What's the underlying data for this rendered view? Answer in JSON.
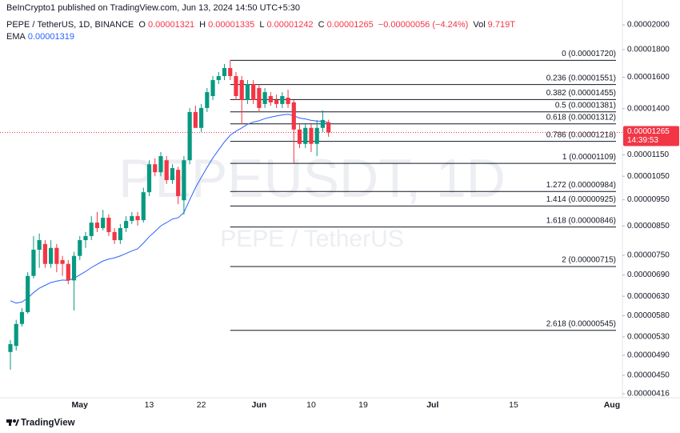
{
  "header": {
    "published": "BeInCrypto1 published on TradingView.com, Jun 13, 2024 14:50 UTC+5:30"
  },
  "legend": {
    "symbol": "PEPE / TetherUS, 1D, BINANCE",
    "o": "O",
    "h": "H",
    "l": "L",
    "c": "C",
    "change": "−0.00000056 (−4.24%)",
    "vol_label": "Vol",
    "vol": "9.719T"
  },
  "watermark": {
    "ticker": "PEPEUSDT, 1D",
    "name": "PEPE / TetherUS"
  },
  "footer": {
    "brand": "TradingView"
  },
  "chart_data": {
    "type": "candlestick",
    "log_scale": true,
    "grid": false,
    "categories": [
      null,
      null,
      null,
      null,
      null,
      null,
      null,
      null,
      null,
      null,
      null,
      null,
      "May",
      null,
      null,
      null,
      null,
      null,
      null,
      null,
      null,
      null,
      null,
      null,
      "13",
      null,
      null,
      null,
      null,
      null,
      null,
      null,
      null,
      "22",
      null,
      null,
      null,
      null,
      null,
      null,
      null,
      null,
      null,
      "Jun",
      null,
      null,
      null,
      null,
      null,
      null,
      null,
      null,
      "10",
      null,
      null,
      null,
      null,
      null,
      null,
      null,
      null,
      "19",
      null,
      null,
      null,
      null,
      null,
      null,
      null,
      null,
      null,
      null,
      null,
      "Jul",
      null,
      null,
      null,
      null,
      null,
      null,
      null,
      null,
      null,
      null,
      null,
      null,
      null,
      "15",
      null,
      null,
      null,
      null,
      null,
      null,
      null,
      null,
      null,
      null,
      null,
      null,
      null,
      null,
      null,
      null,
      "Aug",
      null
    ],
    "candles": {
      "up_color": "#089981",
      "down_color": "#f23645",
      "open": [
        4.97e-06,
        5.1e-06,
        5.6e-06,
        5.89e-06,
        6.87e-06,
        7.68e-06,
        7.87e-06,
        7.23e-06,
        7.74e-06,
        7.35e-06,
        7.23e-06,
        6.74e-06,
        7.48e-06,
        8e-06,
        8.14e-06,
        8.62e-06,
        8.42e-06,
        8.8e-06,
        8.28e-06,
        8e-06,
        8.42e-06,
        8.68e-06,
        8.86e-06,
        8.71e-06,
        9.81e-06,
        1.105e-05,
        1.068e-05,
        1.124e-05,
        1.033e-05,
        1.079e-05,
        9.48e-06,
        1.124e-05,
        1.38e-05,
        1.29e-05,
        1.404e-05,
        1.477e-05,
        1.581e-05,
        1.608e-05,
        1.664e-05,
        1.608e-05,
        1.581e-05,
        1.452e-05,
        1.554e-05,
        1.528e-05,
        1.428e-05,
        1.477e-05,
        1.452e-05,
        1.428e-05,
        1.467e-05,
        1.438e-05,
        1.281e-05,
        1.205e-05,
        1.29e-05,
        1.205e-05,
        1.29e-05,
        1.321e-05,
        null,
        null,
        null,
        null,
        null,
        null,
        null,
        null,
        null,
        null,
        null,
        null,
        null,
        null,
        null,
        null,
        null,
        null,
        null,
        null,
        null,
        null,
        null,
        null,
        null,
        null,
        null,
        null,
        null,
        null,
        null,
        null,
        null,
        null,
        null,
        null,
        null,
        null,
        null,
        null,
        null,
        null,
        null,
        null,
        null,
        null,
        null,
        null,
        null,
        null
      ],
      "high": [
        5.23e-06,
        5.7e-06,
        5.99e-06,
        6.98e-06,
        8.14e-06,
        8.23e-06,
        8e-06,
        8e-06,
        7.87e-06,
        7.48e-06,
        7.35e-06,
        7.61e-06,
        8.14e-06,
        8.28e-06,
        8.86e-06,
        9.02e-06,
        9.1e-06,
        8.93e-06,
        8.42e-06,
        8.57e-06,
        8.86e-06,
        9.02e-06,
        9.02e-06,
        1e-05,
        1.124e-05,
        1.133e-05,
        1.164e-05,
        1.144e-05,
        1.105e-05,
        1.093e-05,
        1.144e-05,
        1.404e-05,
        1.418e-05,
        1.428e-05,
        1.528e-05,
        1.608e-05,
        1.636e-05,
        1.693e-05,
        1.72e-05,
        1.636e-05,
        1.608e-05,
        1.581e-05,
        1.581e-05,
        1.554e-05,
        1.528e-05,
        1.502e-05,
        1.487e-05,
        1.502e-05,
        1.518e-05,
        1.452e-05,
        1.311e-05,
        1.311e-05,
        1.311e-05,
        1.334e-05,
        1.39e-05,
        1.335e-05,
        null,
        null,
        null,
        null,
        null,
        null,
        null,
        null,
        null,
        null,
        null,
        null,
        null,
        null,
        null,
        null,
        null,
        null,
        null,
        null,
        null,
        null,
        null,
        null,
        null,
        null,
        null,
        null,
        null,
        null,
        null,
        null,
        null,
        null,
        null,
        null,
        null,
        null,
        null,
        null,
        null,
        null,
        null,
        null,
        null,
        null,
        null,
        null,
        null,
        null
      ],
      "low": [
        4.61e-06,
        5e-06,
        5.54e-06,
        5.85e-06,
        6.8e-06,
        7.11e-06,
        7.11e-06,
        7.11e-06,
        6.98e-06,
        6.87e-06,
        6.63e-06,
        5.93e-06,
        7.35e-06,
        7.74e-06,
        8e-06,
        8.28e-06,
        8.34e-06,
        8.14e-06,
        7.87e-06,
        7.87e-06,
        8.28e-06,
        8.57e-06,
        8.51e-06,
        8.62e-06,
        9.65e-06,
        1.05e-05,
        1.05e-05,
        1.016e-05,
        1.016e-05,
        9.32e-06,
        8.92e-06,
        1.105e-05,
        1.29e-05,
        1.268e-05,
        1.38e-05,
        1.452e-05,
        1.554e-05,
        1.581e-05,
        1.581e-05,
        1.452e-05,
        1.311e-05,
        1.428e-05,
        1.428e-05,
        1.38e-05,
        1.404e-05,
        1.418e-05,
        1.404e-05,
        1.404e-05,
        1.404e-05,
        1.109e-05,
        1.184e-05,
        1.184e-05,
        1.164e-05,
        1.144e-05,
        1.268e-05,
        1.242e-05,
        null,
        null,
        null,
        null,
        null,
        null,
        null,
        null,
        null,
        null,
        null,
        null,
        null,
        null,
        null,
        null,
        null,
        null,
        null,
        null,
        null,
        null,
        null,
        null,
        null,
        null,
        null,
        null,
        null,
        null,
        null,
        null,
        null,
        null,
        null,
        null,
        null,
        null,
        null,
        null,
        null,
        null,
        null,
        null,
        null,
        null,
        null,
        null,
        null,
        null
      ],
      "close": [
        5.14e-06,
        5.6e-06,
        5.89e-06,
        6.87e-06,
        7.68e-06,
        8e-06,
        7.23e-06,
        7.74e-06,
        7.23e-06,
        7.23e-06,
        6.74e-06,
        7.48e-06,
        8e-06,
        8.14e-06,
        8.62e-06,
        8.42e-06,
        8.8e-06,
        8.28e-06,
        8e-06,
        8.42e-06,
        8.68e-06,
        8.86e-06,
        8.71e-06,
        9.81e-06,
        1.105e-05,
        1.068e-05,
        1.144e-05,
        1.033e-05,
        1.087e-05,
        9.65e-06,
        1.124e-05,
        1.38e-05,
        1.29e-05,
        1.404e-05,
        1.502e-05,
        1.581e-05,
        1.608e-05,
        1.664e-05,
        1.608e-05,
        1.477e-05,
        1.452e-05,
        1.554e-05,
        1.452e-05,
        1.404e-05,
        1.502e-05,
        1.438e-05,
        1.428e-05,
        1.477e-05,
        1.428e-05,
        1.281e-05,
        1.205e-05,
        1.29e-05,
        1.205e-05,
        1.29e-05,
        1.334e-05,
        1.265e-05,
        null,
        null,
        null,
        null,
        null,
        null,
        null,
        null,
        null,
        null,
        null,
        null,
        null,
        null,
        null,
        null,
        null,
        null,
        null,
        null,
        null,
        null,
        null,
        null,
        null,
        null,
        null,
        null,
        null,
        null,
        null,
        null,
        null,
        null,
        null,
        null,
        null,
        null,
        null,
        null,
        null,
        null,
        null,
        null,
        null,
        null,
        null,
        null,
        null,
        null
      ]
    },
    "ema": {
      "name": "EMA",
      "color": "#2962ff",
      "values": [
        6.18e-06,
        6.12e-06,
        6.15e-06,
        6.25e-06,
        6.4e-06,
        6.52e-06,
        6.6e-06,
        6.68e-06,
        6.72e-06,
        6.75e-06,
        6.74e-06,
        6.8e-06,
        6.9e-06,
        7e-06,
        7.12e-06,
        7.22e-06,
        7.32e-06,
        7.38e-06,
        7.42e-06,
        7.48e-06,
        7.56e-06,
        7.64e-06,
        7.71e-06,
        7.9e-06,
        8.12e-06,
        8.3e-06,
        8.5e-06,
        8.62e-06,
        8.75e-06,
        8.8e-06,
        9e-06,
        9.5e-06,
        1e-05,
        1.045e-05,
        1.09e-05,
        1.135e-05,
        1.175e-05,
        1.215e-05,
        1.25e-05,
        1.272e-05,
        1.29e-05,
        1.31e-05,
        1.322e-05,
        1.33e-05,
        1.342e-05,
        1.35e-05,
        1.357e-05,
        1.363e-05,
        1.367e-05,
        1.358e-05,
        1.345e-05,
        1.34e-05,
        1.332e-05,
        1.328e-05,
        1.327e-05,
        1.319e-05,
        null,
        null,
        null,
        null,
        null,
        null,
        null,
        null,
        null,
        null,
        null,
        null,
        null,
        null,
        null,
        null,
        null,
        null,
        null,
        null,
        null,
        null,
        null,
        null,
        null,
        null,
        null,
        null,
        null,
        null,
        null,
        null,
        null,
        null,
        null,
        null,
        null,
        null,
        null,
        null,
        null,
        null,
        null,
        null,
        null,
        null,
        null,
        null,
        null,
        null
      ]
    },
    "fib_levels": {
      "color": "#131722",
      "values": [
        1.72e-05,
        1.551e-05,
        1.455e-05,
        1.381e-05,
        1.312e-05,
        1.218e-05,
        1.109e-05,
        9.84e-06,
        9.25e-06,
        8.46e-06,
        7.15e-06,
        5.45e-06
      ],
      "value_labels": [
        "0 (0.00001720)",
        "0.236 (0.00001551)",
        "0.382 (0.00001455)",
        "0.5 (0.00001381)",
        "0.618 (0.00001312)",
        "0.786 (0.00001218)",
        "1 (0.00001109)",
        "1.272 (0.00000984)",
        "1.414 (0.00000925)",
        "1.618 (0.00000846)",
        "2 (0.00000715)",
        "2.618 (0.00000545)"
      ]
    },
    "ylim": [
      4.09e-06,
      2.223e-05
    ],
    "yticks": [
      {
        "value": 2e-05,
        "label": "0.00002000"
      },
      {
        "value": 1.8e-05,
        "label": "0.00001800"
      },
      {
        "value": 1.6e-05,
        "label": "0.00001600"
      },
      {
        "value": 1.4e-05,
        "label": "0.00001400"
      },
      {
        "value": 1.15e-05,
        "label": "0.00001150"
      },
      {
        "value": 1.05e-05,
        "label": "0.00001050"
      },
      {
        "value": 9.5e-06,
        "label": "0.00000950"
      },
      {
        "value": 8.5e-06,
        "label": "0.00000850"
      },
      {
        "value": 7.5e-06,
        "label": "0.00000750"
      },
      {
        "value": 6.9e-06,
        "label": "0.00000690"
      },
      {
        "value": 6.3e-06,
        "label": "0.00000630"
      },
      {
        "value": 5.8e-06,
        "label": "0.00000580"
      },
      {
        "value": 5.3e-06,
        "label": "0.00000530"
      },
      {
        "value": 4.9e-06,
        "label": "0.00000490"
      },
      {
        "value": 4.5e-06,
        "label": "0.00000450"
      },
      {
        "value": 4.16e-06,
        "label": "0.00000416"
      }
    ],
    "countdown": "14:39:53"
  }
}
